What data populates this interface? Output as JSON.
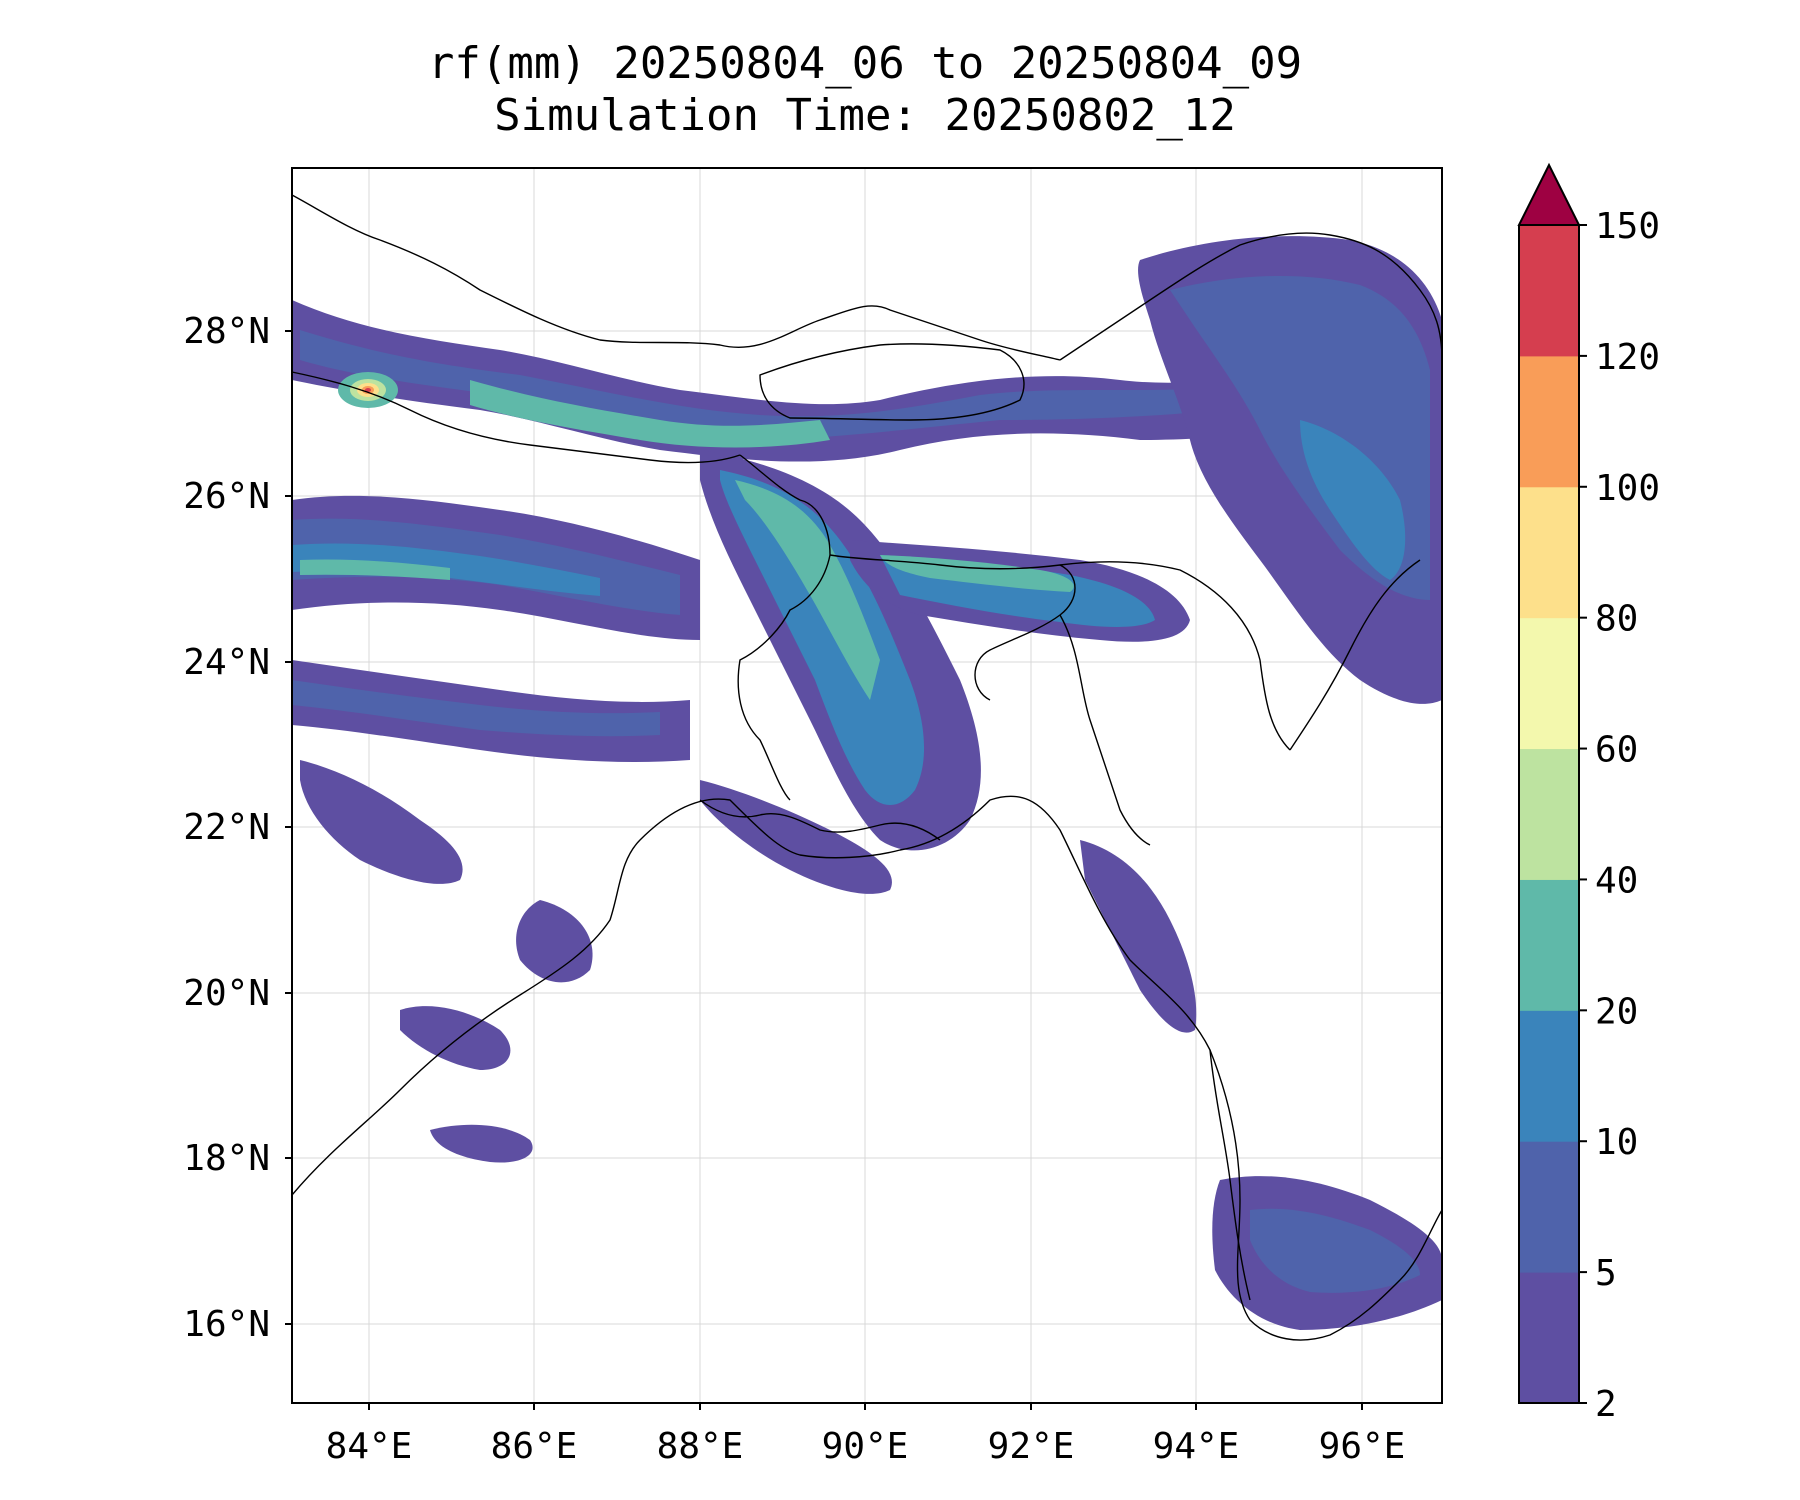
{
  "title": {
    "line1": "rf(mm) 20250804_06 to 20250804_09",
    "line2": "Simulation Time: 20250802_12"
  },
  "map": {
    "lon_range": [
      83.1,
      97.0
    ],
    "lat_range": [
      15.1,
      29.9
    ],
    "lon_ticks": [
      "84°E",
      "86°E",
      "88°E",
      "90°E",
      "92°E",
      "94°E",
      "96°E"
    ],
    "lat_ticks": [
      "28°N",
      "26°N",
      "24°N",
      "22°N",
      "20°N",
      "18°N",
      "16°N"
    ],
    "gridlines": true
  },
  "colorbar": {
    "levels": [
      "2",
      "5",
      "10",
      "20",
      "40",
      "60",
      "80",
      "100",
      "120",
      "150"
    ],
    "colors": [
      "#5e4fa2",
      "#4f63ab",
      "#3a84bb",
      "#5fb9a9",
      "#bde3a0",
      "#f3f8ad",
      "#fde08b",
      "#f99d58",
      "#d53e4f"
    ],
    "extend_color": "#9e0142",
    "extend": "max"
  }
}
